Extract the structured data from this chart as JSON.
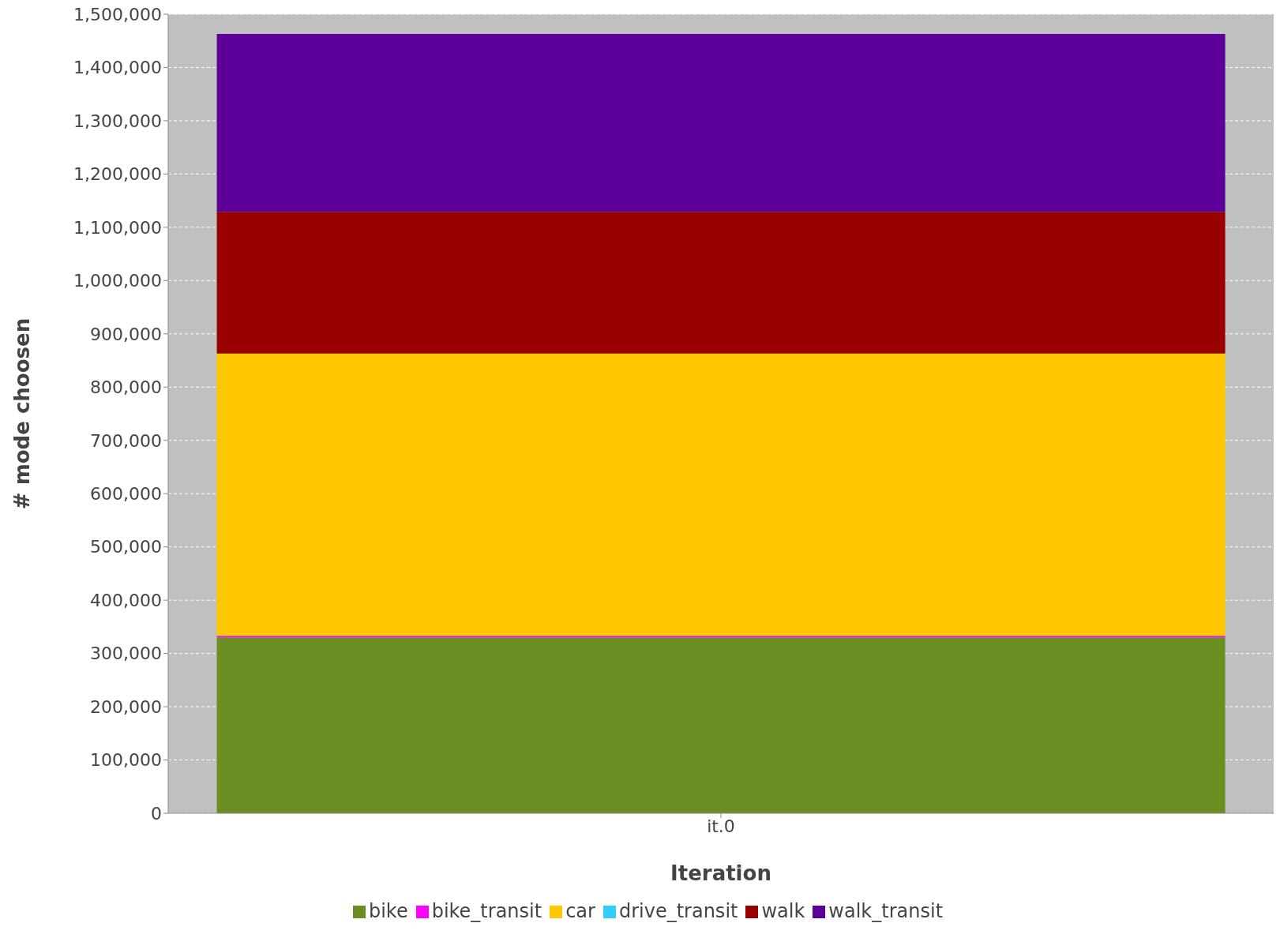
{
  "chart_data": {
    "type": "bar",
    "stacked": true,
    "xlabel": "Iteration",
    "ylabel": "# mode choosen",
    "categories": [
      "it.0"
    ],
    "series": [
      {
        "name": "bike",
        "color": "#6b8e23",
        "values": [
          330000
        ]
      },
      {
        "name": "bike_transit",
        "color": "#ff00ff",
        "values": [
          3000
        ]
      },
      {
        "name": "car",
        "color": "#ffc800",
        "values": [
          530000
        ]
      },
      {
        "name": "drive_transit",
        "color": "#33ccff",
        "values": [
          0
        ]
      },
      {
        "name": "walk",
        "color": "#990000",
        "values": [
          266000
        ]
      },
      {
        "name": "walk_transit",
        "color": "#5c0099",
        "values": [
          334000
        ]
      }
    ],
    "ylim": [
      0,
      1500000
    ],
    "yticks": [
      0,
      {
        "value": 100000,
        "label": "100,000"
      },
      {
        "value": 200000,
        "label": "200,000"
      },
      {
        "value": 300000,
        "label": "300,000"
      },
      {
        "value": 400000,
        "label": "400,000"
      },
      {
        "value": 500000,
        "label": "500,000"
      },
      {
        "value": 600000,
        "label": "600,000"
      },
      {
        "value": 700000,
        "label": "700,000"
      },
      {
        "value": 800000,
        "label": "800,000"
      },
      {
        "value": 900000,
        "label": "900,000"
      },
      {
        "value": 1000000,
        "label": "1,000,000"
      },
      {
        "value": 1100000,
        "label": "1,100,000"
      },
      {
        "value": 1200000,
        "label": "1,200,000"
      },
      {
        "value": 1300000,
        "label": "1,300,000"
      },
      {
        "value": 1400000,
        "label": "1,400,000"
      },
      {
        "value": 1500000,
        "label": "1,500,000"
      }
    ],
    "grid": "y",
    "legend": "bottom"
  }
}
